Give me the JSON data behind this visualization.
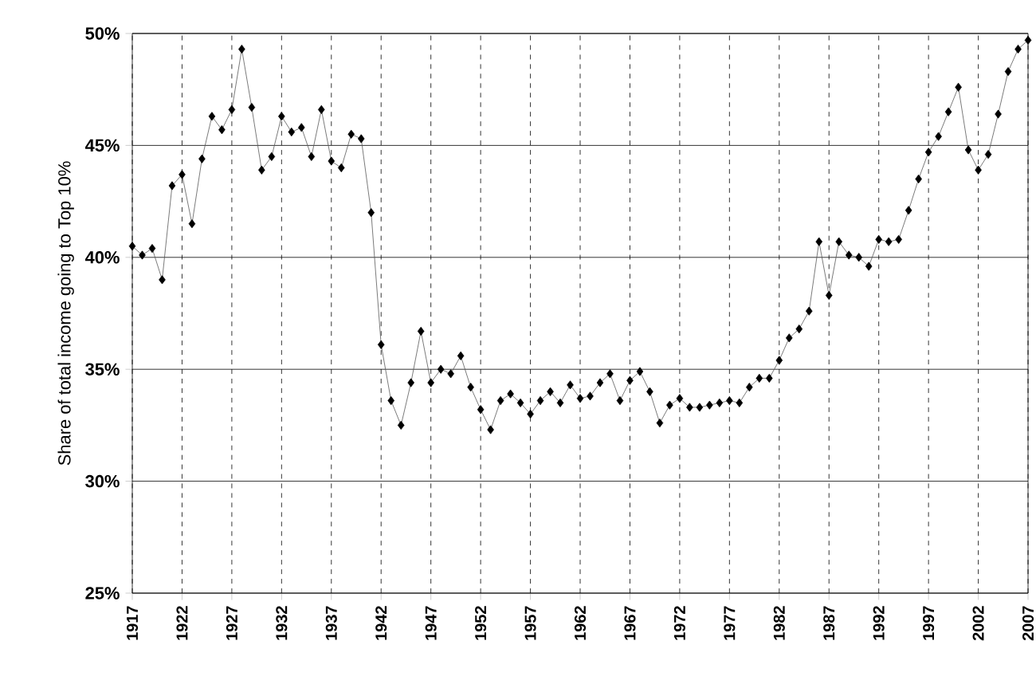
{
  "chart_data": {
    "type": "line",
    "ylabel": "Share of total income going to Top 10%",
    "x": [
      1917,
      1918,
      1919,
      1920,
      1921,
      1922,
      1923,
      1924,
      1925,
      1926,
      1927,
      1928,
      1929,
      1930,
      1931,
      1932,
      1933,
      1934,
      1935,
      1936,
      1937,
      1938,
      1939,
      1940,
      1941,
      1942,
      1943,
      1944,
      1945,
      1946,
      1947,
      1948,
      1949,
      1950,
      1951,
      1952,
      1953,
      1954,
      1955,
      1956,
      1957,
      1958,
      1959,
      1960,
      1961,
      1962,
      1963,
      1964,
      1965,
      1966,
      1967,
      1968,
      1969,
      1970,
      1971,
      1972,
      1973,
      1974,
      1975,
      1976,
      1977,
      1978,
      1979,
      1980,
      1981,
      1982,
      1983,
      1984,
      1985,
      1986,
      1987,
      1988,
      1989,
      1990,
      1991,
      1992,
      1993,
      1994,
      1995,
      1996,
      1997,
      1998,
      1999,
      2000,
      2001,
      2002,
      2003,
      2004,
      2005,
      2006,
      2007
    ],
    "values": [
      40.5,
      40.1,
      40.4,
      39.0,
      43.2,
      43.7,
      41.5,
      44.4,
      46.3,
      45.7,
      46.6,
      49.3,
      46.7,
      43.9,
      44.5,
      46.3,
      45.6,
      45.8,
      44.5,
      46.6,
      44.3,
      44.0,
      45.5,
      45.3,
      42.0,
      36.1,
      33.6,
      32.5,
      34.4,
      36.7,
      34.4,
      35.0,
      34.8,
      35.6,
      34.2,
      33.2,
      32.3,
      33.6,
      33.9,
      33.5,
      33.0,
      33.6,
      34.0,
      33.5,
      34.3,
      33.7,
      33.8,
      34.4,
      34.8,
      33.6,
      34.5,
      34.9,
      34.0,
      32.6,
      33.4,
      33.7,
      33.3,
      33.3,
      33.4,
      33.5,
      33.6,
      33.5,
      34.2,
      34.6,
      34.6,
      35.4,
      36.4,
      36.8,
      37.6,
      40.7,
      38.3,
      40.7,
      40.1,
      40.0,
      39.6,
      40.8,
      40.7,
      40.8,
      42.1,
      43.5,
      44.7,
      45.4,
      46.5,
      47.6,
      44.8,
      43.9,
      44.6,
      46.4,
      48.3,
      49.3,
      49.7
    ],
    "color": "#000000",
    "marker": "diamond",
    "line_style": "solid",
    "grid": true,
    "xlim": [
      1917,
      2007
    ],
    "ylim": [
      25,
      50
    ],
    "xticks": [
      1917,
      1922,
      1927,
      1932,
      1937,
      1942,
      1947,
      1952,
      1957,
      1962,
      1967,
      1972,
      1977,
      1982,
      1987,
      1992,
      1997,
      2002,
      2007
    ],
    "yticks": [
      {
        "value": 25,
        "label": "25%"
      },
      {
        "value": 30,
        "label": "30%"
      },
      {
        "value": 35,
        "label": "35%"
      },
      {
        "value": 40,
        "label": "40%"
      },
      {
        "value": 45,
        "label": "45%"
      },
      {
        "value": 50,
        "label": "50%"
      }
    ]
  }
}
